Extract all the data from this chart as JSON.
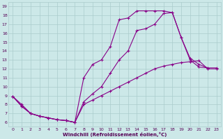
{
  "xlabel": "Windchill (Refroidissement éolien,°C)",
  "bg_color": "#cce8e8",
  "grid_color": "#aacccc",
  "line_color": "#880088",
  "xlim": [
    -0.5,
    23.5
  ],
  "ylim": [
    5.5,
    19.5
  ],
  "xticks": [
    0,
    1,
    2,
    3,
    4,
    5,
    6,
    7,
    8,
    9,
    10,
    11,
    12,
    13,
    14,
    15,
    16,
    17,
    18,
    19,
    20,
    21,
    22,
    23
  ],
  "yticks": [
    6,
    7,
    8,
    9,
    10,
    11,
    12,
    13,
    14,
    15,
    16,
    17,
    18,
    19
  ],
  "series": [
    {
      "x": [
        0,
        1,
        2,
        3,
        4,
        5,
        6,
        7,
        8,
        9,
        10,
        11,
        12,
        13,
        14,
        15,
        16,
        17,
        18,
        19,
        20,
        21,
        22
      ],
      "y": [
        8.9,
        8.0,
        7.0,
        6.7,
        6.5,
        6.3,
        6.2,
        6.0,
        11.0,
        12.5,
        13.0,
        14.5,
        17.5,
        17.7,
        18.5,
        18.5,
        18.5,
        18.5,
        18.3,
        15.5,
        13.0,
        12.2,
        12.1
      ]
    },
    {
      "x": [
        0,
        1,
        2,
        3,
        4,
        5,
        6,
        7,
        8,
        9,
        10,
        11,
        12,
        13,
        14,
        15,
        16,
        17,
        18,
        19,
        20,
        21,
        22,
        23
      ],
      "y": [
        8.9,
        7.8,
        7.0,
        6.7,
        6.5,
        6.3,
        6.2,
        6.0,
        8.3,
        9.2,
        10.0,
        11.5,
        13.0,
        14.0,
        16.3,
        16.5,
        17.0,
        18.2,
        18.3,
        15.5,
        13.2,
        12.5,
        12.1,
        12.1
      ]
    },
    {
      "x": [
        0,
        1,
        2,
        3,
        4,
        5,
        6,
        7,
        8,
        9,
        10,
        11,
        12,
        13,
        14,
        15,
        16,
        17,
        18,
        19,
        20,
        21,
        22,
        23
      ],
      "y": [
        8.9,
        7.8,
        7.0,
        6.7,
        6.5,
        6.3,
        6.2,
        6.0,
        8.0,
        8.5,
        9.0,
        9.5,
        10.0,
        10.5,
        11.0,
        11.5,
        12.0,
        12.3,
        12.5,
        12.7,
        12.8,
        12.9,
        12.0,
        12.0
      ]
    }
  ]
}
